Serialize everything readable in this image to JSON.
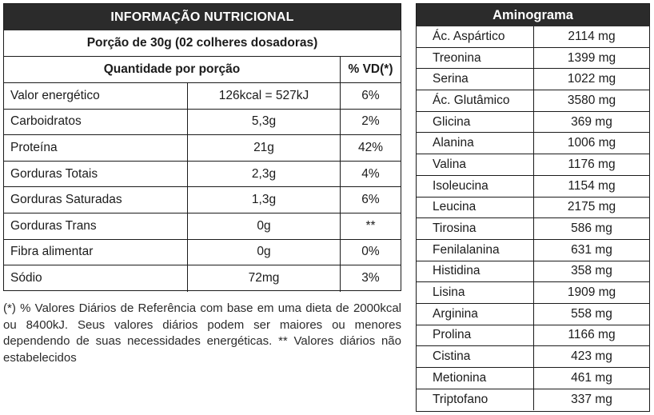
{
  "nutrition": {
    "title": "INFORMAÇÃO NUTRICIONAL",
    "portion": "Porção de 30g (02 colheres dosadoras)",
    "col_quantity": "Quantidade por porção",
    "col_vd": "% VD(*)",
    "rows": [
      {
        "name": "Valor energético",
        "qty": "126kcal = 527kJ",
        "vd": "6%"
      },
      {
        "name": "Carboidratos",
        "qty": "5,3g",
        "vd": "2%"
      },
      {
        "name": "Proteína",
        "qty": "21g",
        "vd": "42%"
      },
      {
        "name": "Gorduras Totais",
        "qty": "2,3g",
        "vd": "4%"
      },
      {
        "name": "Gorduras Saturadas",
        "qty": "1,3g",
        "vd": "6%"
      },
      {
        "name": "Gorduras Trans",
        "qty": "0g",
        "vd": "**"
      },
      {
        "name": "Fibra alimentar",
        "qty": "0g",
        "vd": "0%"
      },
      {
        "name": "Sódio",
        "qty": "72mg",
        "vd": "3%"
      }
    ],
    "footnote": "(*) % Valores Diários de Referência com base em uma dieta de 2000kcal ou 8400kJ. Seus valores diários podem ser maiores ou menores dependendo de suas necessidades energéticas. ** Valores diários não estabelecidos"
  },
  "aminogram": {
    "title": "Aminograma",
    "rows": [
      {
        "name": "Ác. Aspártico",
        "value": "2114 mg"
      },
      {
        "name": "Treonina",
        "value": "1399 mg"
      },
      {
        "name": "Serina",
        "value": "1022 mg"
      },
      {
        "name": "Ác. Glutâmico",
        "value": "3580 mg"
      },
      {
        "name": "Glicina",
        "value": "369 mg"
      },
      {
        "name": "Alanina",
        "value": "1006 mg"
      },
      {
        "name": "Valina",
        "value": "1176 mg"
      },
      {
        "name": "Isoleucina",
        "value": "1154 mg"
      },
      {
        "name": "Leucina",
        "value": "2175 mg"
      },
      {
        "name": "Tirosina",
        "value": "586 mg"
      },
      {
        "name": "Fenilalanina",
        "value": "631 mg"
      },
      {
        "name": "Histidina",
        "value": "358 mg"
      },
      {
        "name": "Lisina",
        "value": "1909 mg"
      },
      {
        "name": "Arginina",
        "value": "558 mg"
      },
      {
        "name": "Prolina",
        "value": "1166 mg"
      },
      {
        "name": "Cistina",
        "value": "423 mg"
      },
      {
        "name": "Metionina",
        "value": "461 mg"
      },
      {
        "name": "Triptofano",
        "value": "337 mg"
      }
    ]
  },
  "colors": {
    "header_bg": "#2b2b2b",
    "border": "#1b1b1b",
    "text": "#1b1b1b"
  }
}
